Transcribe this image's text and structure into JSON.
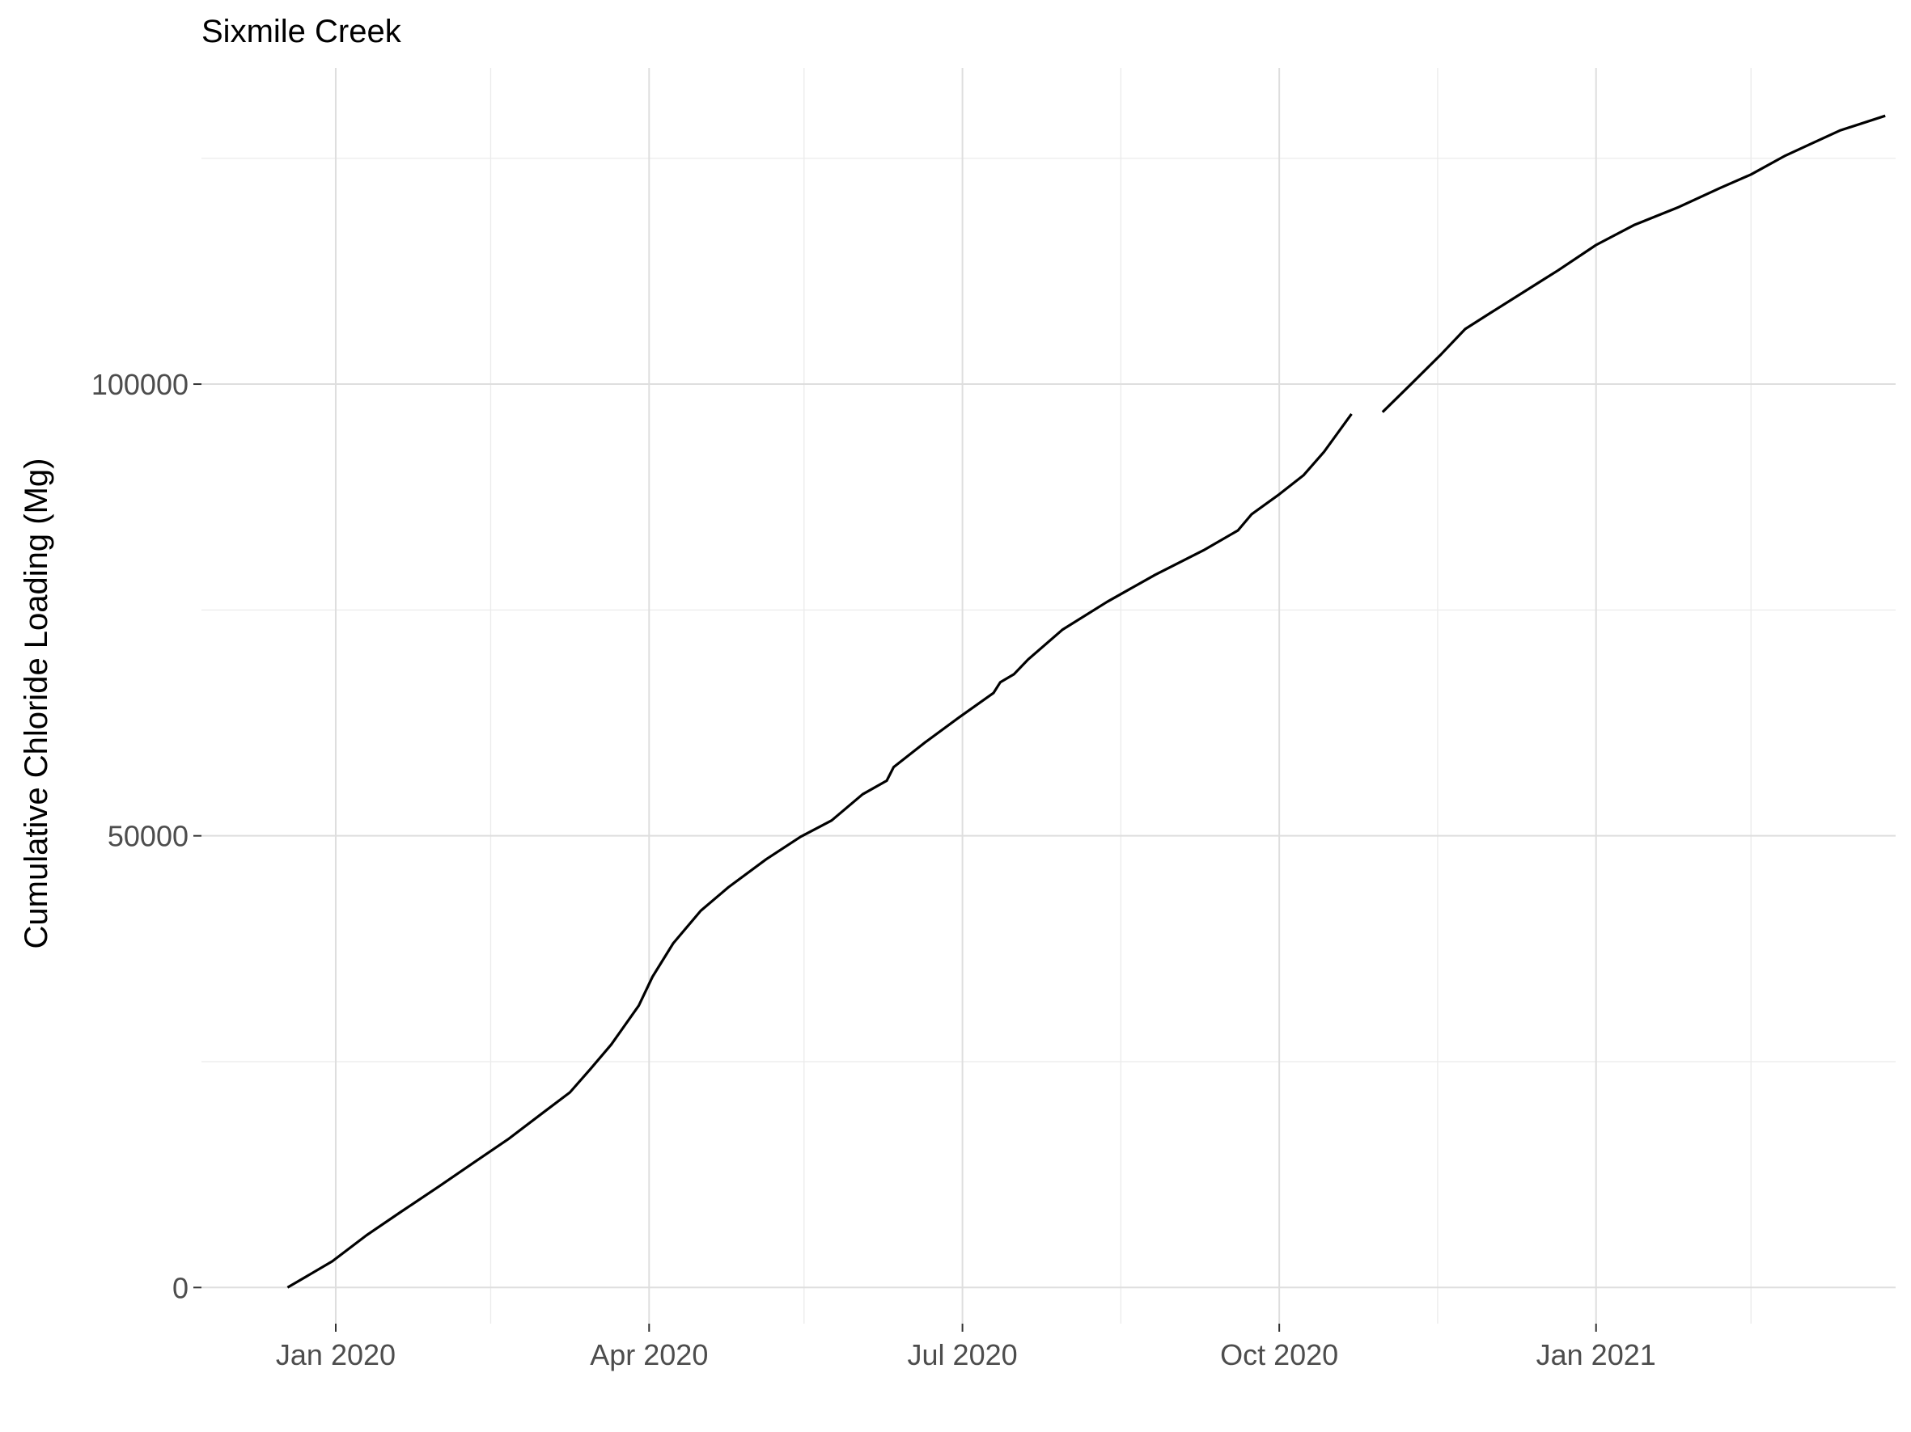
{
  "chart_data": {
    "type": "line",
    "title": "Sixmile Creek",
    "xlabel": "",
    "ylabel": "Cumulative Chloride Loading (Mg)",
    "x_axis": {
      "type": "date",
      "range": [
        "2019-11-23",
        "2021-03-29"
      ],
      "ticks": [
        {
          "date": "2020-01-01",
          "label": "Jan 2020"
        },
        {
          "date": "2020-04-01",
          "label": "Apr 2020"
        },
        {
          "date": "2020-07-01",
          "label": "Jul 2020"
        },
        {
          "date": "2020-10-01",
          "label": "Oct 2020"
        },
        {
          "date": "2021-01-01",
          "label": "Jan 2021"
        }
      ],
      "minor_ticks": [
        "2020-02-15",
        "2020-05-16",
        "2020-08-16",
        "2020-11-16",
        "2021-02-15"
      ]
    },
    "y_axis": {
      "range": [
        -4000,
        135000
      ],
      "ticks": [
        {
          "value": 0,
          "label": "0"
        },
        {
          "value": 50000,
          "label": "50000"
        },
        {
          "value": 100000,
          "label": "100000"
        }
      ],
      "minor_ticks": [
        25000,
        75000,
        125000
      ]
    },
    "grid": true,
    "series": [
      {
        "segments": [
          [
            [
              "2019-12-18",
              0
            ],
            [
              "2019-12-31",
              2900
            ],
            [
              "2020-01-10",
              5800
            ],
            [
              "2020-01-20",
              8400
            ],
            [
              "2020-01-31",
              11200
            ],
            [
              "2020-02-10",
              13800
            ],
            [
              "2020-02-20",
              16400
            ],
            [
              "2020-03-01",
              19300
            ],
            [
              "2020-03-09",
              21600
            ],
            [
              "2020-03-15",
              24200
            ],
            [
              "2020-03-21",
              26900
            ],
            [
              "2020-03-29",
              31200
            ],
            [
              "2020-04-02",
              34400
            ],
            [
              "2020-04-08",
              38100
            ],
            [
              "2020-04-16",
              41700
            ],
            [
              "2020-04-24",
              44300
            ],
            [
              "2020-05-05",
              47400
            ],
            [
              "2020-05-15",
              49900
            ],
            [
              "2020-05-24",
              51700
            ],
            [
              "2020-06-02",
              54600
            ],
            [
              "2020-06-09",
              56100
            ],
            [
              "2020-06-11",
              57600
            ],
            [
              "2020-06-20",
              60300
            ],
            [
              "2020-06-30",
              63100
            ],
            [
              "2020-07-10",
              65800
            ],
            [
              "2020-07-12",
              67000
            ],
            [
              "2020-07-16",
              67900
            ],
            [
              "2020-07-20",
              69500
            ],
            [
              "2020-07-30",
              72800
            ],
            [
              "2020-08-12",
              75900
            ],
            [
              "2020-08-26",
              78900
            ],
            [
              "2020-09-09",
              81600
            ],
            [
              "2020-09-19",
              83800
            ],
            [
              "2020-09-23",
              85600
            ],
            [
              "2020-10-01",
              87800
            ],
            [
              "2020-10-08",
              89900
            ],
            [
              "2020-10-14",
              92500
            ],
            [
              "2020-10-22",
              96700
            ]
          ],
          [
            [
              "2020-10-31",
              96900
            ],
            [
              "2020-11-08",
              99900
            ],
            [
              "2020-11-17",
              103300
            ],
            [
              "2020-11-24",
              106100
            ],
            [
              "2020-12-01",
              107800
            ],
            [
              "2020-12-11",
              110200
            ],
            [
              "2020-12-21",
              112600
            ],
            [
              "2021-01-01",
              115400
            ],
            [
              "2021-01-12",
              117600
            ],
            [
              "2021-01-25",
              119600
            ],
            [
              "2021-02-06",
              121700
            ],
            [
              "2021-02-15",
              123200
            ],
            [
              "2021-02-25",
              125300
            ],
            [
              "2021-03-05",
              126700
            ],
            [
              "2021-03-13",
              128100
            ],
            [
              "2021-03-26",
              129700
            ]
          ]
        ]
      }
    ]
  }
}
